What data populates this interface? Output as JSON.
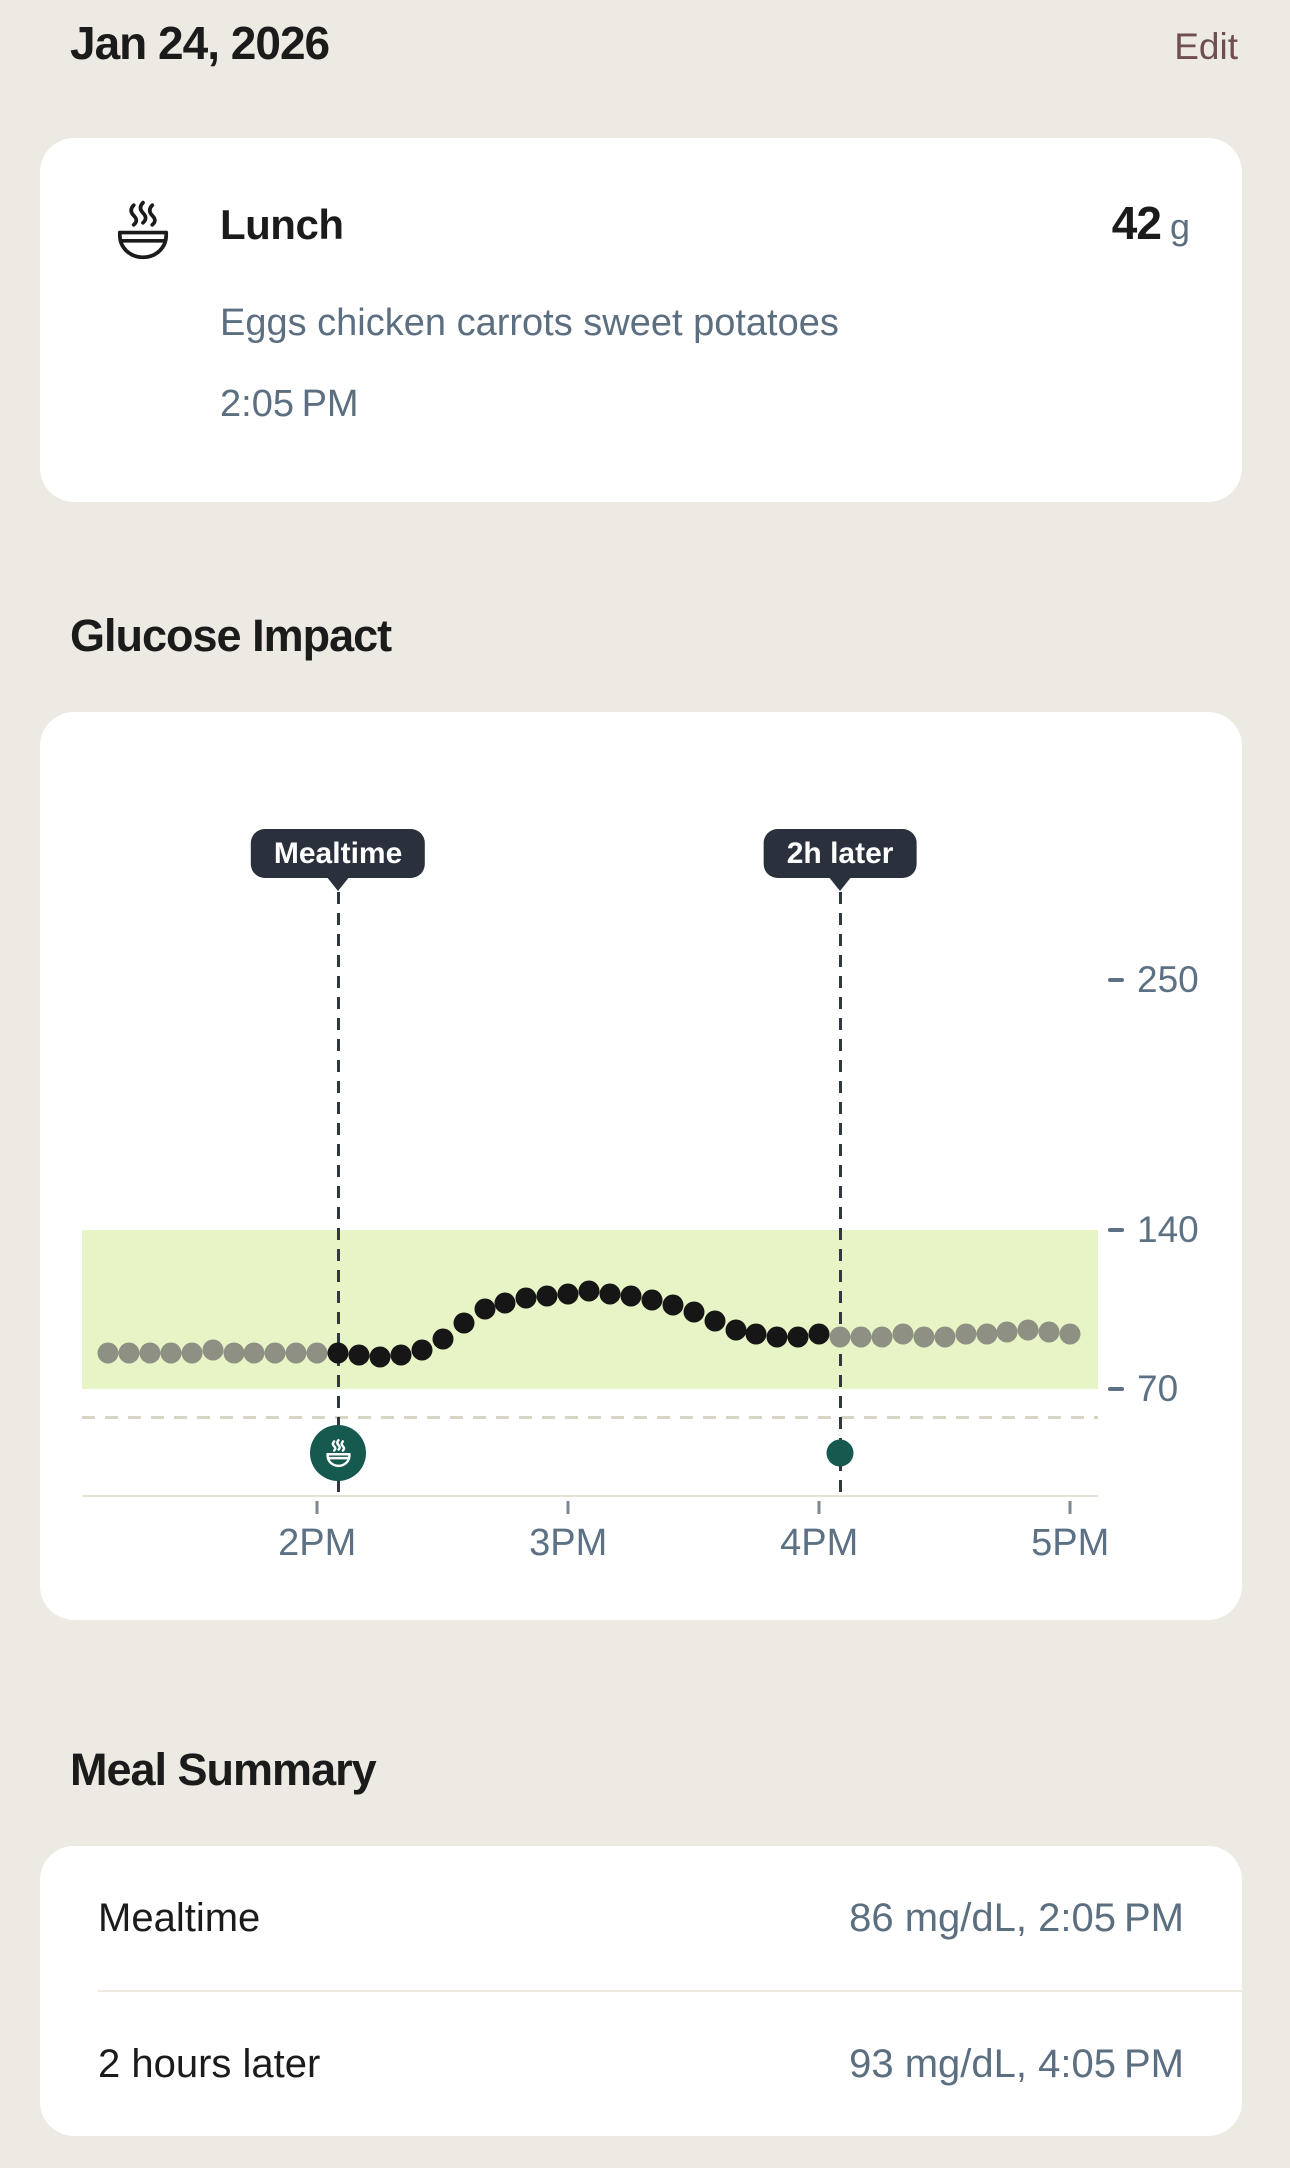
{
  "header": {
    "date": "Jan 24, 2026",
    "edit_label": "Edit"
  },
  "meal_card": {
    "title": "Lunch",
    "carbs_value": "42",
    "carbs_unit": "g",
    "description": "Eggs chicken carrots sweet potatoes",
    "time": "2:05 PM"
  },
  "glucose_section": {
    "title": "Glucose Impact"
  },
  "icons": {
    "meal_card": "steaming-bowl-icon",
    "mealtime_marker": "steaming-bowl-icon",
    "two_hour_marker": "dot-marker"
  },
  "colors": {
    "page_bg": "#ECEAE2",
    "card_bg": "#FFFFFF",
    "text_primary": "#1B1B1B",
    "text_secondary": "#5C6F80",
    "edit_link": "#6F4D51",
    "badge_bg": "#2A313C",
    "target_band": "#E6F4C6",
    "marker_teal": "#15594F",
    "dot_in_window": "#161616",
    "dot_out_window": "#8D9083",
    "axis_line": "#E6E2D4",
    "guide_line": "#D9D5C5",
    "divider": "#EFEAE0"
  },
  "chart_data": {
    "type": "scatter",
    "title": "Glucose Impact",
    "unit": "mg/dL",
    "x_tick_labels": [
      "2PM",
      "3PM",
      "4PM",
      "5PM"
    ],
    "y_ticks": [
      70,
      140,
      250
    ],
    "ylim": [
      55,
      285
    ],
    "target_range": {
      "low": 70,
      "high": 140
    },
    "low_guide_value": 58,
    "legend": false,
    "y_axis_side": "right",
    "annotations": [
      {
        "label": "Mealtime",
        "time": "2:05 PM",
        "point_index": 11,
        "marker": "meal-icon"
      },
      {
        "label": "2h later",
        "time": "4:05 PM",
        "point_index": 35,
        "marker": "dot"
      }
    ],
    "series": [
      {
        "name": "glucose",
        "interval_minutes": 5,
        "meal_window": [
          11,
          34
        ],
        "times": [
          "1:10 PM",
          "1:15 PM",
          "1:20 PM",
          "1:25 PM",
          "1:30 PM",
          "1:35 PM",
          "1:40 PM",
          "1:45 PM",
          "1:50 PM",
          "1:55 PM",
          "2:00 PM",
          "2:05 PM",
          "2:10 PM",
          "2:15 PM",
          "2:20 PM",
          "2:25 PM",
          "2:30 PM",
          "2:35 PM",
          "2:40 PM",
          "2:45 PM",
          "2:50 PM",
          "2:55 PM",
          "3:00 PM",
          "3:05 PM",
          "3:10 PM",
          "3:15 PM",
          "3:20 PM",
          "3:25 PM",
          "3:30 PM",
          "3:35 PM",
          "3:40 PM",
          "3:45 PM",
          "3:50 PM",
          "3:55 PM",
          "4:00 PM",
          "4:05 PM",
          "4:10 PM",
          "4:15 PM",
          "4:20 PM",
          "4:25 PM",
          "4:30 PM",
          "4:35 PM",
          "4:40 PM",
          "4:45 PM",
          "4:50 PM",
          "4:55 PM",
          "5:00 PM"
        ],
        "values": [
          86,
          86,
          86,
          86,
          86,
          87,
          86,
          86,
          86,
          86,
          86,
          86,
          85,
          84,
          85,
          87,
          92,
          99,
          105,
          108,
          110,
          111,
          112,
          113,
          112,
          111,
          109,
          107,
          104,
          100,
          96,
          94,
          93,
          93,
          94,
          93,
          93,
          93,
          94,
          93,
          93,
          94,
          94,
          95,
          96,
          95,
          94
        ]
      }
    ]
  },
  "summary": {
    "title": "Meal Summary",
    "rows": [
      {
        "label": "Mealtime",
        "value": "86 mg/dL, 2:05 PM"
      },
      {
        "label": "2 hours later",
        "value": "93 mg/dL, 4:05 PM"
      }
    ]
  }
}
